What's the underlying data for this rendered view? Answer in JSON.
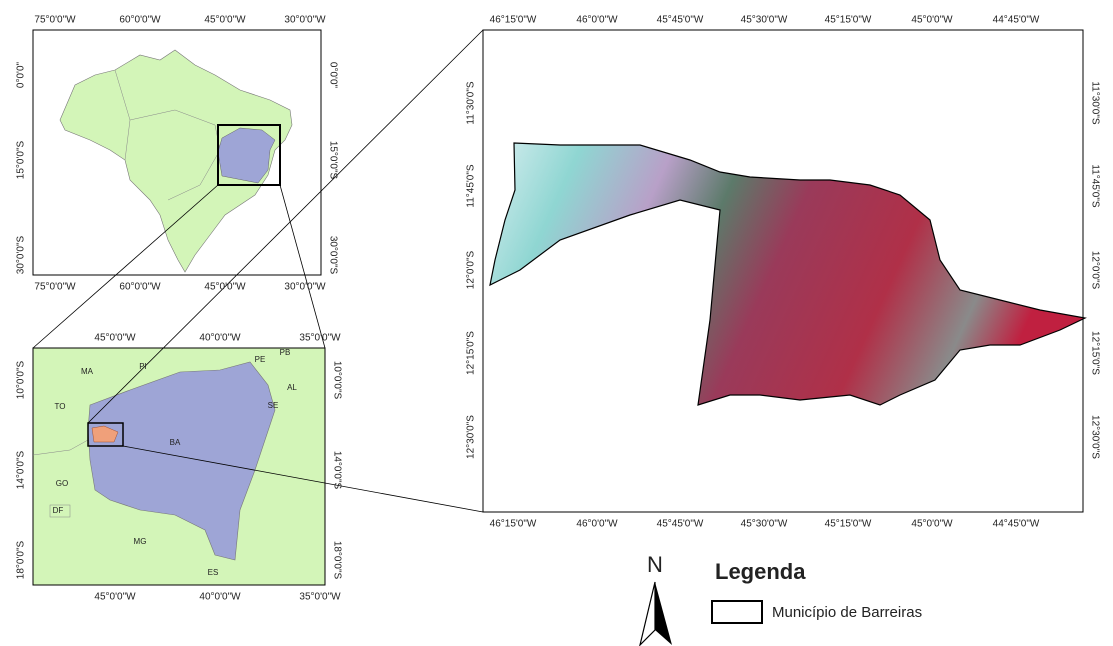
{
  "brazil_map": {
    "lon_labels": [
      "75°0'0\"W",
      "60°0'0\"W",
      "45°0'0\"W",
      "30°0'0\"W"
    ],
    "lat_labels": [
      "0°0'0\"",
      "15°0'0\"S",
      "30°0'0\"S"
    ]
  },
  "bahia_map": {
    "lon_labels": [
      "45°0'0\"W",
      "40°0'0\"W",
      "35°0'0\"W"
    ],
    "lat_labels": [
      "10°0'0\"S",
      "14°0'0\"S",
      "18°0'0\"S"
    ],
    "states": [
      "MA",
      "PI",
      "PE",
      "PB",
      "AL",
      "SE",
      "TO",
      "BA",
      "GO",
      "DF",
      "MG",
      "ES"
    ]
  },
  "barreiras_map": {
    "lon_labels": [
      "46°15'0\"W",
      "46°0'0\"W",
      "45°45'0\"W",
      "45°30'0\"W",
      "45°15'0\"W",
      "45°0'0\"W",
      "44°45'0\"W"
    ],
    "lat_labels": [
      "11°30'0\"S",
      "11°45'0\"S",
      "12°0'0\"S",
      "12°15'0\"S",
      "12°30'0\"S"
    ]
  },
  "north": "N",
  "legend": {
    "title": "Legenda",
    "item": "Município de Barreiras"
  }
}
